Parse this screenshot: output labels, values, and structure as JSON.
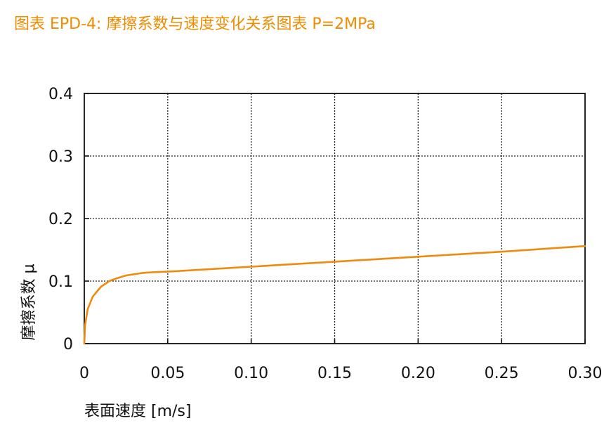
{
  "title": "图表 EPD-4: 摩擦系数与速度变化关系图表 P=2MPa",
  "colors": {
    "title": "#f08c00",
    "series": "#ef8a0c",
    "axis": "#111111",
    "grid": "#222222"
  },
  "chart_data": {
    "type": "line",
    "xlabel": "表面速度 [m/s]",
    "ylabel": "摩擦系数 μ",
    "xlim": [
      0,
      0.3
    ],
    "ylim": [
      0,
      0.4
    ],
    "grid": true,
    "xticks": [
      "0",
      "0.05",
      "0.10",
      "0.15",
      "0.20",
      "0.25",
      "0.30"
    ],
    "yticks": [
      "0",
      "0.1",
      "0.2",
      "0.3",
      "0.4"
    ],
    "series": [
      {
        "x": [
          0,
          0.0005,
          0.002,
          0.005,
          0.01,
          0.015,
          0.02,
          0.025,
          0.03,
          0.035,
          0.04,
          0.045,
          0.05,
          0.1,
          0.15,
          0.2,
          0.25,
          0.3
        ],
        "y": [
          0,
          0.03,
          0.055,
          0.075,
          0.091,
          0.1,
          0.105,
          0.109,
          0.111,
          0.113,
          0.114,
          0.1145,
          0.115,
          0.123,
          0.131,
          0.139,
          0.147,
          0.156
        ]
      }
    ]
  }
}
